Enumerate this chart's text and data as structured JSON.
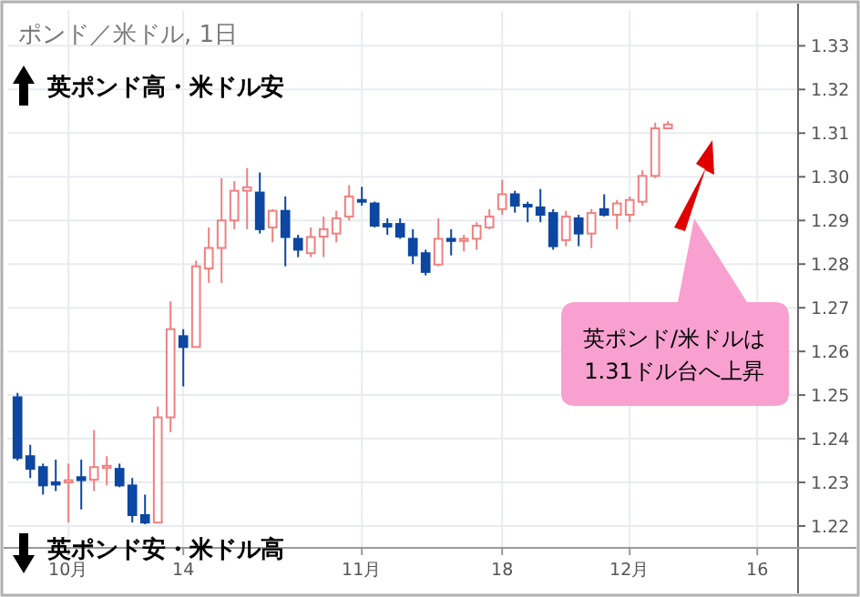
{
  "chart_data": {
    "type": "candlestick",
    "title": "ポンド／米ドル, 1日",
    "categories": [
      null,
      null,
      null,
      null,
      "10月",
      null,
      null,
      null,
      null,
      null,
      null,
      null,
      null,
      "14",
      null,
      null,
      null,
      null,
      null,
      null,
      null,
      null,
      null,
      null,
      null,
      null,
      null,
      "11月",
      null,
      null,
      null,
      null,
      null,
      null,
      null,
      null,
      null,
      null,
      "18",
      null,
      null,
      null,
      null,
      null,
      null,
      null,
      null,
      null,
      "12月",
      null,
      null,
      null,
      null,
      null,
      null,
      null,
      null,
      null,
      "16",
      null,
      null,
      null
    ],
    "ohlc": [
      [
        1.2495,
        1.2505,
        1.235,
        1.2356
      ],
      [
        1.236,
        1.2386,
        1.231,
        1.2331
      ],
      [
        1.2335,
        1.2343,
        1.2272,
        1.2293
      ],
      [
        1.23,
        1.2352,
        1.228,
        1.2295
      ],
      [
        1.23,
        1.2343,
        1.2208,
        1.2305
      ],
      [
        1.2312,
        1.2352,
        1.2238,
        1.2305
      ],
      [
        1.2306,
        1.242,
        1.228,
        1.2335
      ],
      [
        1.2333,
        1.236,
        1.2293,
        1.2338
      ],
      [
        1.2331,
        1.2343,
        1.2289,
        1.2293
      ],
      [
        1.2293,
        1.231,
        1.2208,
        1.2225
      ],
      [
        1.2225,
        1.2272,
        1.2204,
        1.2208
      ],
      [
        1.2208,
        1.2474,
        1.2208,
        1.2449
      ],
      [
        1.2449,
        1.2715,
        1.2415,
        1.2651
      ],
      [
        1.2635,
        1.2651,
        1.252,
        1.261
      ],
      [
        1.261,
        1.2808,
        1.261,
        1.2795
      ],
      [
        1.279,
        1.2884,
        1.2757,
        1.2837
      ],
      [
        1.2837,
        1.2997,
        1.2757,
        1.29
      ],
      [
        1.29,
        1.299,
        1.288,
        1.2968
      ],
      [
        1.2968,
        1.302,
        1.288,
        1.2976
      ],
      [
        1.2964,
        1.301,
        1.287,
        1.288
      ],
      [
        1.2884,
        1.2926,
        1.285,
        1.2922
      ],
      [
        1.2922,
        1.2955,
        1.2795,
        1.2862
      ],
      [
        1.2858,
        1.2867,
        1.2816,
        1.2833
      ],
      [
        1.2825,
        1.2884,
        1.2816,
        1.2862
      ],
      [
        1.2863,
        1.2909,
        1.2816,
        1.288
      ],
      [
        1.287,
        1.2922,
        1.285,
        1.2905
      ],
      [
        1.2909,
        1.2981,
        1.29,
        1.2955
      ],
      [
        1.2947,
        1.2977,
        1.2934,
        1.2943
      ],
      [
        1.2939,
        1.2943,
        1.2884,
        1.2888
      ],
      [
        1.2892,
        1.2905,
        1.2867,
        1.2886
      ],
      [
        1.2892,
        1.2905,
        1.2858,
        1.2863
      ],
      [
        1.2858,
        1.288,
        1.28,
        1.282
      ],
      [
        1.2825,
        1.2833,
        1.2774,
        1.2782
      ],
      [
        1.2799,
        1.2905,
        1.2795,
        1.2858
      ],
      [
        1.2858,
        1.288,
        1.282,
        1.2853
      ],
      [
        1.2853,
        1.2867,
        1.2829,
        1.2858
      ],
      [
        1.2858,
        1.2896,
        1.2833,
        1.2888
      ],
      [
        1.2884,
        1.2926,
        1.288,
        1.2909
      ],
      [
        1.2926,
        1.2993,
        1.2913,
        1.296
      ],
      [
        1.296,
        1.2968,
        1.2918,
        1.2934
      ],
      [
        1.2936,
        1.2943,
        1.2896,
        1.2932
      ],
      [
        1.293,
        1.2972,
        1.2896,
        1.2913
      ],
      [
        1.2917,
        1.2926,
        1.2833,
        1.2841
      ],
      [
        1.2855,
        1.2922,
        1.2841,
        1.2909
      ],
      [
        1.2905,
        1.2913,
        1.2841,
        1.287
      ],
      [
        1.287,
        1.2926,
        1.2837,
        1.2917
      ],
      [
        1.2926,
        1.296,
        1.2909,
        1.2913
      ],
      [
        1.2913,
        1.2947,
        1.288,
        1.2939
      ],
      [
        1.2913,
        1.2955,
        1.2896,
        1.2947
      ],
      [
        1.2943,
        1.3015,
        1.2934,
        1.3002
      ],
      [
        1.3002,
        1.3124,
        1.2997,
        1.3111
      ],
      [
        1.3111,
        1.3128,
        1.3111,
        1.312
      ],
      null,
      null,
      null,
      null,
      null,
      null,
      null,
      null,
      null,
      null
    ],
    "colors": [
      "#0d47a1",
      "#0d47a1",
      "#0d47a1",
      "#0d47a1",
      "#f08080",
      "#0d47a1",
      "#f08080",
      "#f08080",
      "#0d47a1",
      "#0d47a1",
      "#0d47a1",
      "#f08080",
      "#f08080",
      "#0d47a1",
      "#f08080",
      "#f08080",
      "#f08080",
      "#f08080",
      "#f08080",
      "#0d47a1",
      "#f08080",
      "#0d47a1",
      "#0d47a1",
      "#f08080",
      "#f08080",
      "#f08080",
      "#f08080",
      "#0d47a1",
      "#0d47a1",
      "#0d47a1",
      "#0d47a1",
      "#0d47a1",
      "#0d47a1",
      "#f08080",
      "#0d47a1",
      "#f08080",
      "#f08080",
      "#f08080",
      "#f08080",
      "#0d47a1",
      "#0d47a1",
      "#0d47a1",
      "#0d47a1",
      "#f08080",
      "#0d47a1",
      "#f08080",
      "#0d47a1",
      "#f08080",
      "#f08080",
      "#f08080",
      "#f08080",
      "#f08080",
      null,
      null,
      null,
      null,
      null,
      null,
      null,
      null,
      null,
      null
    ],
    "ylim": [
      1.215,
      1.338
    ],
    "yticks": [
      1.22,
      1.23,
      1.24,
      1.25,
      1.26,
      1.27,
      1.28,
      1.29,
      {
        "value": 1.3,
        "label": "1.30"
      },
      1.31,
      1.32,
      1.33
    ],
    "grid": true,
    "annotations": [
      "英ポンド高・米ドル安",
      "英ポンド安・米ドル高",
      "英ポンド/米ドルは\n1.31ドル台へ上昇"
    ]
  }
}
